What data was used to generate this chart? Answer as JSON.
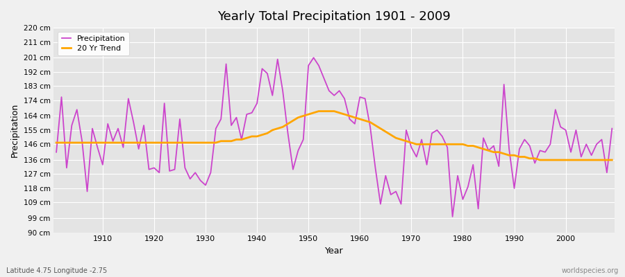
{
  "title": "Yearly Total Precipitation 1901 - 2009",
  "xlabel": "Year",
  "ylabel": "Precipitation",
  "footnote_left": "Latitude 4.75 Longitude -2.75",
  "footnote_right": "worldspecies.org",
  "precip_color": "#CC44CC",
  "trend_color": "#FFA500",
  "bg_color": "#F0F0F0",
  "plot_bg_color": "#E4E4E4",
  "grid_color": "#FFFFFF",
  "ylim": [
    90,
    220
  ],
  "ytick_labels": [
    "90 cm",
    "99 cm",
    "109 cm",
    "118 cm",
    "127 cm",
    "136 cm",
    "146 cm",
    "155 cm",
    "164 cm",
    "174 cm",
    "183 cm",
    "192 cm",
    "201 cm",
    "211 cm",
    "220 cm"
  ],
  "ytick_values": [
    90,
    99,
    109,
    118,
    127,
    136,
    146,
    155,
    164,
    174,
    183,
    192,
    201,
    211,
    220
  ],
  "years": [
    1901,
    1902,
    1903,
    1904,
    1905,
    1906,
    1907,
    1908,
    1909,
    1910,
    1911,
    1912,
    1913,
    1914,
    1915,
    1916,
    1917,
    1918,
    1919,
    1920,
    1921,
    1922,
    1923,
    1924,
    1925,
    1926,
    1927,
    1928,
    1929,
    1930,
    1931,
    1932,
    1933,
    1934,
    1935,
    1936,
    1937,
    1938,
    1939,
    1940,
    1941,
    1942,
    1943,
    1944,
    1945,
    1946,
    1947,
    1948,
    1949,
    1950,
    1951,
    1952,
    1953,
    1954,
    1955,
    1956,
    1957,
    1958,
    1959,
    1960,
    1961,
    1962,
    1963,
    1964,
    1965,
    1966,
    1967,
    1968,
    1969,
    1970,
    1971,
    1972,
    1973,
    1974,
    1975,
    1976,
    1977,
    1978,
    1979,
    1980,
    1981,
    1982,
    1983,
    1984,
    1985,
    1986,
    1987,
    1988,
    1989,
    1990,
    1991,
    1992,
    1993,
    1994,
    1995,
    1996,
    1997,
    1998,
    1999,
    2000,
    2001,
    2002,
    2003,
    2004,
    2005,
    2006,
    2007,
    2008,
    2009
  ],
  "precipitation": [
    141,
    176,
    131,
    158,
    168,
    148,
    116,
    156,
    144,
    133,
    159,
    148,
    156,
    144,
    175,
    160,
    143,
    158,
    130,
    131,
    128,
    172,
    129,
    130,
    162,
    131,
    124,
    128,
    123,
    120,
    128,
    156,
    162,
    197,
    158,
    163,
    149,
    165,
    166,
    172,
    194,
    191,
    177,
    200,
    180,
    153,
    130,
    142,
    149,
    196,
    201,
    196,
    188,
    180,
    177,
    180,
    175,
    162,
    159,
    176,
    175,
    157,
    131,
    108,
    126,
    114,
    116,
    108,
    155,
    144,
    138,
    149,
    133,
    153,
    155,
    151,
    144,
    100,
    126,
    111,
    119,
    133,
    105,
    150,
    142,
    145,
    132,
    184,
    143,
    118,
    143,
    149,
    145,
    134,
    142,
    141,
    146,
    168,
    157,
    155,
    141,
    155,
    138,
    146,
    139,
    146,
    149,
    128,
    156
  ],
  "trend": [
    147,
    147,
    147,
    147,
    147,
    147,
    147,
    147,
    147,
    147,
    147,
    147,
    147,
    147,
    147,
    147,
    147,
    147,
    147,
    147,
    147,
    147,
    147,
    147,
    147,
    147,
    147,
    147,
    147,
    147,
    147,
    147,
    148,
    148,
    148,
    149,
    149,
    150,
    151,
    151,
    152,
    153,
    155,
    156,
    157,
    159,
    161,
    163,
    164,
    165,
    166,
    167,
    167,
    167,
    167,
    166,
    165,
    164,
    163,
    162,
    161,
    160,
    158,
    156,
    154,
    152,
    150,
    149,
    148,
    147,
    146,
    146,
    146,
    146,
    146,
    146,
    146,
    146,
    146,
    146,
    145,
    145,
    144,
    143,
    142,
    141,
    141,
    140,
    139,
    139,
    138,
    138,
    137,
    137,
    136,
    136,
    136,
    136,
    136,
    136,
    136,
    136,
    136,
    136,
    136,
    136,
    136,
    136,
    136
  ]
}
